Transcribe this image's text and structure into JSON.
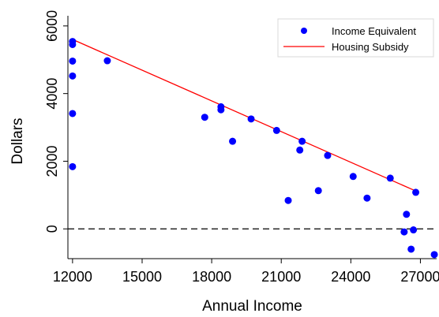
{
  "chart_data": {
    "type": "scatter",
    "xlabel": "Annual Income",
    "ylabel": "Dollars",
    "xlim": [
      11800,
      27700
    ],
    "ylim": [
      -880,
      6300
    ],
    "x_ticks": [
      12000,
      15000,
      18000,
      21000,
      24000,
      27000
    ],
    "x_tick_labels": [
      "12000",
      "15000",
      "18000",
      "21000",
      "24000",
      "27000"
    ],
    "y_ticks": [
      0,
      2000,
      4000,
      6000
    ],
    "y_tick_labels": [
      "0",
      "2000",
      "4000",
      "6000"
    ],
    "reference_line": {
      "y": 0,
      "style": "dashed",
      "color": "#000000"
    },
    "legend": {
      "position": "top-right"
    },
    "series": [
      {
        "name": "Income Equivalent",
        "kind": "scatter",
        "color": "#0000ff",
        "points": [
          [
            12000,
            5540
          ],
          [
            12000,
            5450
          ],
          [
            12000,
            4960
          ],
          [
            12000,
            4520
          ],
          [
            12000,
            3410
          ],
          [
            12000,
            1840
          ],
          [
            13500,
            4970
          ],
          [
            17700,
            3300
          ],
          [
            18400,
            3610
          ],
          [
            18400,
            3520
          ],
          [
            18900,
            2590
          ],
          [
            19700,
            3250
          ],
          [
            20800,
            2910
          ],
          [
            21300,
            840
          ],
          [
            21800,
            2330
          ],
          [
            21900,
            2590
          ],
          [
            22600,
            1130
          ],
          [
            23000,
            2170
          ],
          [
            24100,
            1550
          ],
          [
            24700,
            910
          ],
          [
            25700,
            1500
          ],
          [
            26300,
            -90
          ],
          [
            26400,
            430
          ],
          [
            26600,
            -600
          ],
          [
            26700,
            -30
          ],
          [
            26800,
            1080
          ],
          [
            27600,
            -760
          ]
        ]
      },
      {
        "name": "Housing Subsidy",
        "kind": "line",
        "color": "#ff0000",
        "points": [
          [
            12000,
            5600
          ],
          [
            26800,
            1120
          ]
        ]
      }
    ]
  }
}
